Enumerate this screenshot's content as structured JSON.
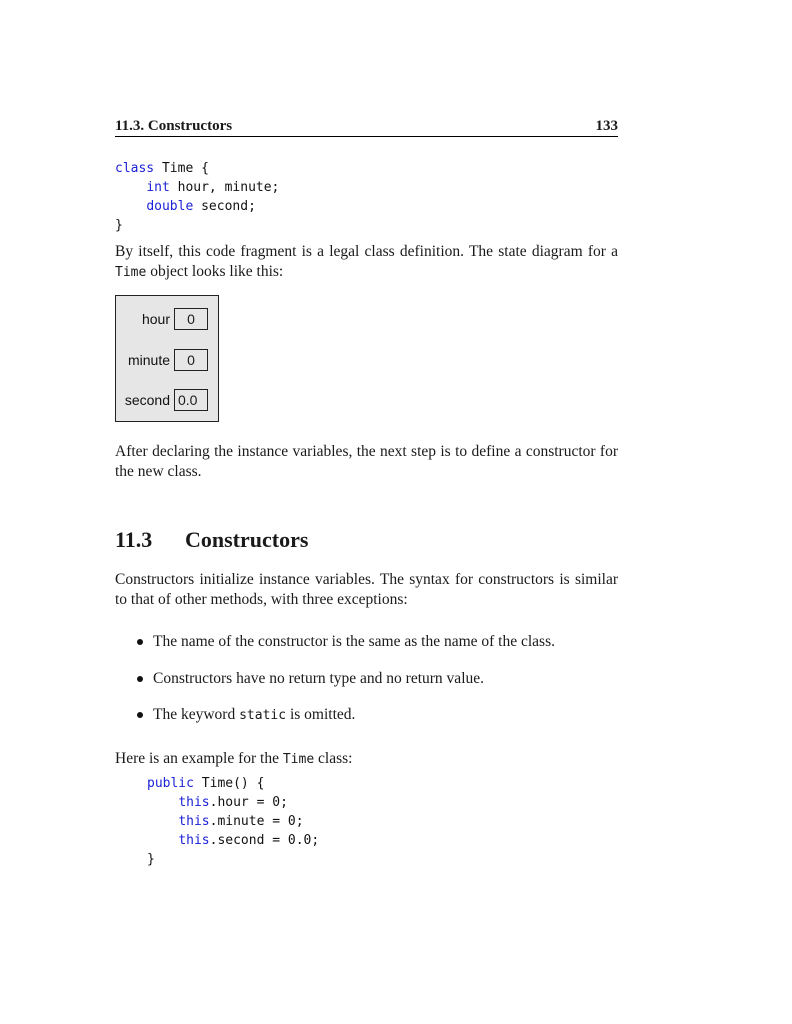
{
  "header": {
    "section_title": "11.3. Constructors",
    "page_number": "133"
  },
  "code_block_1": {
    "line1_kw": "class",
    "line1_rest": " Time {",
    "line2_kw": "int",
    "line2_rest": " hour, minute;",
    "line3_kw": "double",
    "line3_rest": " second;",
    "line4": "}"
  },
  "para_1": {
    "text_a": "By itself, this code fragment is a legal class definition. The state diagram for a ",
    "code": "Time",
    "text_b": " object looks like this:"
  },
  "state_diagram": {
    "rows": [
      {
        "label": "hour",
        "value": "0"
      },
      {
        "label": "minute",
        "value": "0"
      },
      {
        "label": "second",
        "value": "0.0"
      }
    ]
  },
  "para_2": {
    "text": "After declaring the instance variables, the next step is to define a constructor for the new class."
  },
  "section": {
    "number": "11.3",
    "title": "Constructors"
  },
  "para_3": {
    "text": "Constructors initialize instance variables. The syntax for constructors is similar to that of other methods, with three exceptions:"
  },
  "bullets": {
    "item1": "The name of the constructor is the same as the name of the class.",
    "item2": "Constructors have no return type and no return value.",
    "item3_a": "The keyword ",
    "item3_code": "static",
    "item3_b": " is omitted."
  },
  "para_4": {
    "text_a": "Here is an example for the ",
    "code": "Time",
    "text_b": " class:"
  },
  "code_block_2": {
    "line1_kw": "public",
    "line1_rest": " Time() {",
    "line2_kw": "this",
    "line2_rest": ".hour = 0;",
    "line3_kw": "this",
    "line3_rest": ".minute = 0;",
    "line4_kw": "this",
    "line4_rest": ".second = 0.0;",
    "line5": "}"
  }
}
